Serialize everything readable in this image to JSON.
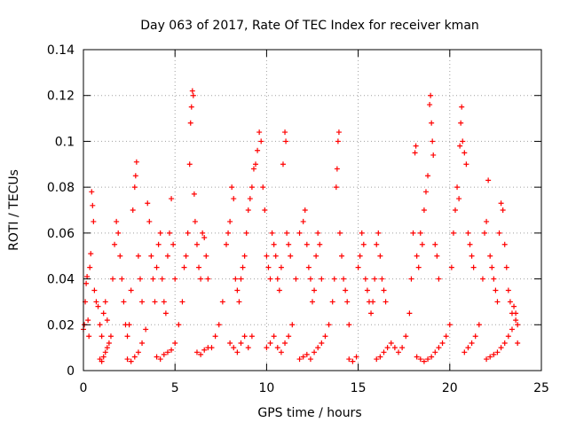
{
  "chart_data": {
    "type": "scatter",
    "title": "Day 063 of 2017, Rate Of TEC Index for receiver kman",
    "xlabel": "GPS time / hours",
    "ylabel": "ROTI / TECUs",
    "xlim": [
      0,
      25
    ],
    "ylim": [
      0,
      0.14
    ],
    "x_ticks": [
      0,
      5,
      10,
      15,
      20,
      25
    ],
    "y_ticks": [
      0,
      0.02,
      0.04,
      0.06,
      0.08,
      0.1,
      0.12,
      0.14
    ],
    "x_tick_labels": [
      "0",
      "5",
      "10",
      "15",
      "20",
      "25"
    ],
    "y_tick_labels": [
      "0",
      "0.02",
      "0.04",
      "0.06",
      "0.08",
      "0.1",
      "0.12",
      "0.14"
    ],
    "grid": true,
    "marker": "+",
    "marker_color": "#ff0000",
    "series": [
      {
        "points": [
          [
            0.0,
            0.018
          ],
          [
            0.05,
            0.02
          ],
          [
            0.1,
            0.03
          ],
          [
            0.15,
            0.038
          ],
          [
            0.2,
            0.041
          ],
          [
            0.25,
            0.022
          ],
          [
            0.3,
            0.015
          ],
          [
            0.35,
            0.045
          ],
          [
            0.4,
            0.051
          ],
          [
            0.45,
            0.078
          ],
          [
            0.5,
            0.072
          ],
          [
            0.55,
            0.065
          ],
          [
            0.6,
            0.035
          ],
          [
            0.7,
            0.03
          ],
          [
            0.8,
            0.028
          ],
          [
            0.9,
            0.02
          ],
          [
            1.0,
            0.015
          ],
          [
            1.1,
            0.025
          ],
          [
            1.2,
            0.03
          ],
          [
            1.3,
            0.022
          ],
          [
            0.9,
            0.005
          ],
          [
            1.0,
            0.004
          ],
          [
            1.1,
            0.006
          ],
          [
            1.2,
            0.008
          ],
          [
            1.3,
            0.01
          ],
          [
            1.4,
            0.012
          ],
          [
            1.5,
            0.015
          ],
          [
            1.6,
            0.04
          ],
          [
            1.7,
            0.055
          ],
          [
            1.8,
            0.065
          ],
          [
            1.9,
            0.06
          ],
          [
            2.0,
            0.05
          ],
          [
            2.1,
            0.04
          ],
          [
            2.2,
            0.03
          ],
          [
            2.3,
            0.02
          ],
          [
            2.4,
            0.015
          ],
          [
            2.5,
            0.02
          ],
          [
            2.6,
            0.035
          ],
          [
            2.7,
            0.07
          ],
          [
            2.8,
            0.08
          ],
          [
            2.85,
            0.085
          ],
          [
            2.9,
            0.091
          ],
          [
            3.0,
            0.05
          ],
          [
            3.1,
            0.04
          ],
          [
            3.2,
            0.03
          ],
          [
            2.4,
            0.005
          ],
          [
            2.6,
            0.004
          ],
          [
            2.8,
            0.006
          ],
          [
            3.0,
            0.008
          ],
          [
            3.2,
            0.012
          ],
          [
            3.4,
            0.018
          ],
          [
            3.5,
            0.073
          ],
          [
            3.6,
            0.065
          ],
          [
            3.7,
            0.05
          ],
          [
            3.8,
            0.04
          ],
          [
            3.9,
            0.03
          ],
          [
            4.0,
            0.045
          ],
          [
            4.1,
            0.055
          ],
          [
            4.2,
            0.06
          ],
          [
            4.3,
            0.04
          ],
          [
            4.4,
            0.03
          ],
          [
            4.5,
            0.025
          ],
          [
            4.6,
            0.05
          ],
          [
            4.7,
            0.06
          ],
          [
            4.8,
            0.075
          ],
          [
            4.9,
            0.055
          ],
          [
            5.0,
            0.04
          ],
          [
            4.0,
            0.006
          ],
          [
            4.2,
            0.005
          ],
          [
            4.4,
            0.007
          ],
          [
            4.6,
            0.008
          ],
          [
            4.8,
            0.009
          ],
          [
            5.0,
            0.012
          ],
          [
            5.2,
            0.02
          ],
          [
            5.4,
            0.03
          ],
          [
            5.5,
            0.045
          ],
          [
            5.6,
            0.05
          ],
          [
            5.7,
            0.06
          ],
          [
            5.8,
            0.09
          ],
          [
            5.85,
            0.108
          ],
          [
            5.9,
            0.115
          ],
          [
            5.95,
            0.122
          ],
          [
            6.0,
            0.12
          ],
          [
            6.05,
            0.077
          ],
          [
            6.1,
            0.065
          ],
          [
            6.2,
            0.055
          ],
          [
            6.3,
            0.045
          ],
          [
            6.4,
            0.04
          ],
          [
            6.5,
            0.06
          ],
          [
            6.6,
            0.058
          ],
          [
            6.7,
            0.05
          ],
          [
            6.8,
            0.04
          ],
          [
            6.2,
            0.008
          ],
          [
            6.4,
            0.007
          ],
          [
            6.6,
            0.009
          ],
          [
            6.8,
            0.01
          ],
          [
            7.0,
            0.01
          ],
          [
            7.2,
            0.015
          ],
          [
            7.4,
            0.02
          ],
          [
            7.6,
            0.03
          ],
          [
            7.8,
            0.055
          ],
          [
            7.9,
            0.06
          ],
          [
            8.0,
            0.065
          ],
          [
            8.1,
            0.08
          ],
          [
            8.2,
            0.075
          ],
          [
            8.3,
            0.04
          ],
          [
            8.4,
            0.035
          ],
          [
            8.5,
            0.03
          ],
          [
            8.6,
            0.04
          ],
          [
            8.7,
            0.045
          ],
          [
            8.8,
            0.05
          ],
          [
            8.9,
            0.06
          ],
          [
            9.0,
            0.07
          ],
          [
            9.1,
            0.075
          ],
          [
            9.2,
            0.08
          ],
          [
            9.3,
            0.088
          ],
          [
            8.0,
            0.012
          ],
          [
            8.2,
            0.01
          ],
          [
            8.4,
            0.008
          ],
          [
            8.6,
            0.012
          ],
          [
            8.8,
            0.015
          ],
          [
            9.0,
            0.01
          ],
          [
            9.2,
            0.015
          ],
          [
            9.4,
            0.09
          ],
          [
            9.5,
            0.096
          ],
          [
            9.6,
            0.104
          ],
          [
            9.7,
            0.1
          ],
          [
            9.8,
            0.08
          ],
          [
            9.9,
            0.07
          ],
          [
            10.0,
            0.05
          ],
          [
            10.1,
            0.045
          ],
          [
            10.2,
            0.04
          ],
          [
            10.3,
            0.06
          ],
          [
            10.4,
            0.055
          ],
          [
            10.5,
            0.05
          ],
          [
            10.6,
            0.04
          ],
          [
            10.7,
            0.035
          ],
          [
            10.8,
            0.045
          ],
          [
            10.9,
            0.09
          ],
          [
            11.0,
            0.104
          ],
          [
            11.05,
            0.1
          ],
          [
            11.1,
            0.06
          ],
          [
            11.2,
            0.055
          ],
          [
            11.3,
            0.05
          ],
          [
            10.0,
            0.01
          ],
          [
            10.2,
            0.012
          ],
          [
            10.4,
            0.015
          ],
          [
            10.6,
            0.01
          ],
          [
            10.8,
            0.008
          ],
          [
            11.0,
            0.012
          ],
          [
            11.2,
            0.015
          ],
          [
            11.4,
            0.02
          ],
          [
            11.6,
            0.04
          ],
          [
            11.8,
            0.06
          ],
          [
            12.0,
            0.065
          ],
          [
            12.1,
            0.07
          ],
          [
            12.2,
            0.055
          ],
          [
            12.3,
            0.045
          ],
          [
            12.4,
            0.04
          ],
          [
            12.5,
            0.03
          ],
          [
            12.6,
            0.035
          ],
          [
            12.7,
            0.05
          ],
          [
            12.8,
            0.06
          ],
          [
            12.9,
            0.055
          ],
          [
            13.0,
            0.04
          ],
          [
            11.8,
            0.005
          ],
          [
            12.0,
            0.006
          ],
          [
            12.2,
            0.007
          ],
          [
            12.4,
            0.005
          ],
          [
            12.6,
            0.008
          ],
          [
            12.8,
            0.01
          ],
          [
            13.0,
            0.012
          ],
          [
            13.2,
            0.015
          ],
          [
            13.4,
            0.02
          ],
          [
            13.6,
            0.03
          ],
          [
            13.7,
            0.04
          ],
          [
            13.8,
            0.08
          ],
          [
            13.85,
            0.088
          ],
          [
            13.9,
            0.1
          ],
          [
            13.95,
            0.104
          ],
          [
            14.0,
            0.06
          ],
          [
            14.1,
            0.05
          ],
          [
            14.2,
            0.04
          ],
          [
            14.3,
            0.035
          ],
          [
            14.4,
            0.03
          ],
          [
            14.5,
            0.02
          ],
          [
            14.5,
            0.005
          ],
          [
            14.7,
            0.004
          ],
          [
            14.9,
            0.006
          ],
          [
            15.0,
            0.045
          ],
          [
            15.1,
            0.05
          ],
          [
            15.2,
            0.06
          ],
          [
            15.3,
            0.055
          ],
          [
            15.4,
            0.04
          ],
          [
            15.5,
            0.035
          ],
          [
            15.6,
            0.03
          ],
          [
            15.7,
            0.025
          ],
          [
            15.8,
            0.03
          ],
          [
            15.9,
            0.04
          ],
          [
            16.0,
            0.055
          ],
          [
            16.1,
            0.06
          ],
          [
            16.2,
            0.05
          ],
          [
            16.3,
            0.04
          ],
          [
            16.4,
            0.035
          ],
          [
            16.5,
            0.03
          ],
          [
            16.0,
            0.005
          ],
          [
            16.2,
            0.006
          ],
          [
            16.4,
            0.008
          ],
          [
            16.6,
            0.01
          ],
          [
            16.8,
            0.012
          ],
          [
            17.0,
            0.01
          ],
          [
            17.2,
            0.008
          ],
          [
            17.4,
            0.01
          ],
          [
            17.6,
            0.015
          ],
          [
            17.8,
            0.025
          ],
          [
            17.9,
            0.04
          ],
          [
            18.0,
            0.06
          ],
          [
            18.1,
            0.095
          ],
          [
            18.15,
            0.098
          ],
          [
            18.2,
            0.05
          ],
          [
            18.3,
            0.045
          ],
          [
            18.4,
            0.06
          ],
          [
            18.5,
            0.055
          ],
          [
            18.6,
            0.07
          ],
          [
            18.7,
            0.078
          ],
          [
            18.8,
            0.085
          ],
          [
            18.9,
            0.116
          ],
          [
            18.95,
            0.12
          ],
          [
            19.0,
            0.108
          ],
          [
            19.05,
            0.1
          ],
          [
            19.1,
            0.094
          ],
          [
            19.2,
            0.055
          ],
          [
            19.3,
            0.05
          ],
          [
            19.4,
            0.04
          ],
          [
            18.2,
            0.006
          ],
          [
            18.4,
            0.005
          ],
          [
            18.6,
            0.004
          ],
          [
            18.8,
            0.005
          ],
          [
            19.0,
            0.006
          ],
          [
            19.2,
            0.008
          ],
          [
            19.4,
            0.01
          ],
          [
            19.6,
            0.012
          ],
          [
            19.8,
            0.015
          ],
          [
            20.0,
            0.02
          ],
          [
            20.1,
            0.045
          ],
          [
            20.2,
            0.06
          ],
          [
            20.3,
            0.07
          ],
          [
            20.4,
            0.08
          ],
          [
            20.5,
            0.075
          ],
          [
            20.55,
            0.098
          ],
          [
            20.6,
            0.108
          ],
          [
            20.65,
            0.115
          ],
          [
            20.7,
            0.1
          ],
          [
            20.8,
            0.095
          ],
          [
            20.9,
            0.09
          ],
          [
            21.0,
            0.06
          ],
          [
            21.1,
            0.055
          ],
          [
            21.2,
            0.05
          ],
          [
            21.3,
            0.045
          ],
          [
            20.8,
            0.008
          ],
          [
            21.0,
            0.01
          ],
          [
            21.2,
            0.012
          ],
          [
            21.4,
            0.015
          ],
          [
            21.6,
            0.02
          ],
          [
            21.8,
            0.04
          ],
          [
            21.9,
            0.06
          ],
          [
            22.0,
            0.065
          ],
          [
            22.1,
            0.083
          ],
          [
            22.2,
            0.05
          ],
          [
            22.3,
            0.045
          ],
          [
            22.4,
            0.04
          ],
          [
            22.5,
            0.035
          ],
          [
            22.6,
            0.03
          ],
          [
            22.7,
            0.06
          ],
          [
            22.8,
            0.073
          ],
          [
            22.9,
            0.07
          ],
          [
            23.0,
            0.055
          ],
          [
            23.1,
            0.045
          ],
          [
            23.2,
            0.035
          ],
          [
            23.3,
            0.03
          ],
          [
            23.4,
            0.025
          ],
          [
            23.5,
            0.028
          ],
          [
            23.6,
            0.025
          ],
          [
            23.7,
            0.02
          ],
          [
            22.0,
            0.005
          ],
          [
            22.2,
            0.006
          ],
          [
            22.4,
            0.007
          ],
          [
            22.6,
            0.008
          ],
          [
            22.8,
            0.01
          ],
          [
            23.0,
            0.012
          ],
          [
            23.2,
            0.015
          ],
          [
            23.4,
            0.018
          ],
          [
            23.6,
            0.022
          ],
          [
            23.7,
            0.012
          ]
        ]
      }
    ]
  }
}
